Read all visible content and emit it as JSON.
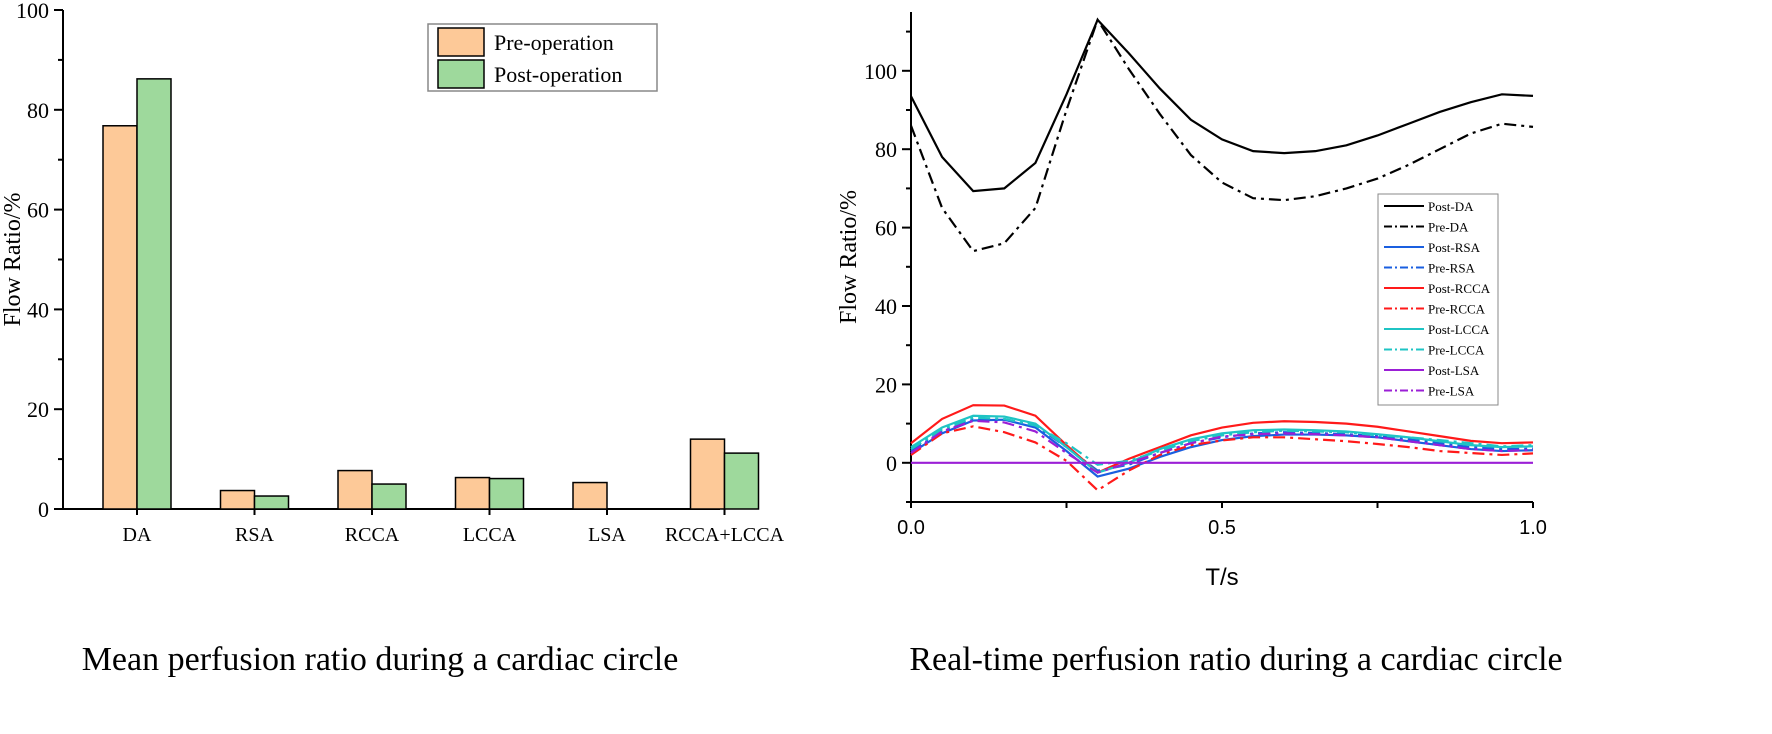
{
  "chart_data": [
    {
      "type": "bar",
      "title": "Mean perfusion ratio during a cardiac circle",
      "xlabel": "",
      "ylabel": "Flow Ratio/%",
      "ylim": [
        0,
        100
      ],
      "yticks": [
        "0",
        "20",
        "40",
        "60",
        "80",
        "100"
      ],
      "categories": [
        "DA",
        "RSA",
        "RCCA",
        "LCCA",
        "LSA",
        "RCCA+LCCA"
      ],
      "legend_position": "top-right",
      "series": [
        {
          "name": "Pre-operation",
          "color": "#fdc998",
          "values": [
            76.8,
            3.7,
            7.7,
            6.3,
            5.3,
            14.0
          ]
        },
        {
          "name": "Post-operation",
          "color": "#9ed99c",
          "values": [
            86.2,
            2.6,
            5.0,
            6.1,
            0.0,
            11.2
          ]
        }
      ]
    },
    {
      "type": "line",
      "title": "Real-time perfusion ratio during a cardiac circle",
      "xlabel": "T/s",
      "ylabel": "Flow Ratio/%",
      "xlim": [
        0,
        1
      ],
      "ylim": [
        -10,
        115
      ],
      "xticks": [
        "0.0",
        "0.5",
        "1.0"
      ],
      "yticks": [
        "0",
        "20",
        "40",
        "60",
        "80",
        "100"
      ],
      "legend_position": "right",
      "x": [
        0,
        0.05,
        0.1,
        0.15,
        0.2,
        0.25,
        0.3,
        0.35,
        0.4,
        0.45,
        0.5,
        0.55,
        0.6,
        0.65,
        0.7,
        0.75,
        0.8,
        0.85,
        0.9,
        0.95,
        1.0
      ],
      "series": [
        {
          "name": "Post-DA",
          "color": "#000000",
          "dash": "solid",
          "values": [
            93.5,
            78,
            69.3,
            70,
            76.5,
            94,
            113,
            104.5,
            95.5,
            87.5,
            82.5,
            79.5,
            79,
            79.5,
            81,
            83.5,
            86.5,
            89.5,
            92,
            94,
            93.6
          ]
        },
        {
          "name": "Pre-DA",
          "color": "#000000",
          "dash": "dashdot",
          "values": [
            86,
            65,
            54,
            56,
            65,
            90,
            113,
            100.5,
            89,
            78.5,
            71.5,
            67.5,
            67,
            68,
            70,
            72.5,
            76,
            80,
            84,
            86.5,
            85.7
          ]
        },
        {
          "name": "Post-RSA",
          "color": "#1a5fe0",
          "dash": "solid",
          "values": [
            2.5,
            7.5,
            10.8,
            11,
            9,
            3,
            -3.5,
            -1.5,
            1.5,
            4,
            5.8,
            6.8,
            7.2,
            7.2,
            7,
            6.5,
            5.5,
            4.5,
            3.5,
            3,
            3.2
          ]
        },
        {
          "name": "Pre-RSA",
          "color": "#1a5fe0",
          "dash": "dashdot",
          "values": [
            3,
            8,
            11,
            11,
            9.5,
            4,
            -2,
            -0.5,
            2.5,
            5,
            6.5,
            7.5,
            7.8,
            7.6,
            7.3,
            6.8,
            6,
            5,
            4,
            3.5,
            3.6
          ]
        },
        {
          "name": "Post-RCCA",
          "color": "#ff1a1a",
          "dash": "solid",
          "values": [
            5,
            11.2,
            14.7,
            14.6,
            12,
            4.5,
            -2.5,
            1,
            4,
            7,
            9,
            10.2,
            10.6,
            10.4,
            10,
            9.2,
            8,
            6.8,
            5.6,
            5,
            5.2
          ]
        },
        {
          "name": "Pre-RCCA",
          "color": "#ff1a1a",
          "dash": "dashdot",
          "values": [
            2,
            7.5,
            9.3,
            7.8,
            5.2,
            0.5,
            -7,
            -2,
            2,
            4.5,
            5.7,
            6.5,
            6.5,
            6,
            5.5,
            4.8,
            4,
            3,
            2.5,
            2,
            2.4
          ]
        },
        {
          "name": "Post-LCCA",
          "color": "#1fc4c4",
          "dash": "solid",
          "values": [
            4,
            9,
            12,
            11.8,
            10,
            4,
            -2.5,
            0,
            3.5,
            6,
            7.5,
            8.3,
            8.5,
            8.3,
            8,
            7.3,
            6.5,
            5.5,
            4.5,
            4,
            4.2
          ]
        },
        {
          "name": "Pre-LCCA",
          "color": "#1fc4c4",
          "dash": "dashdot",
          "values": [
            3.5,
            8.5,
            11.5,
            11.2,
            9.5,
            5,
            -0.5,
            0.5,
            3,
            5.5,
            7,
            7.8,
            8.2,
            8,
            7.8,
            7,
            6.5,
            5.8,
            5,
            4.2,
            4.5
          ]
        },
        {
          "name": "Post-LSA",
          "color": "#9b1fd6",
          "dash": "solid",
          "values": [
            0,
            0,
            0,
            0,
            0,
            0,
            0,
            0,
            0,
            0,
            0,
            0,
            0,
            0,
            0,
            0,
            0,
            0,
            0,
            0,
            0
          ]
        },
        {
          "name": "Pre-LSA",
          "color": "#9b1fd6",
          "dash": "dashdot",
          "values": [
            2.5,
            8,
            10.7,
            10.3,
            8,
            2.5,
            -2.5,
            0,
            2.5,
            5,
            6.7,
            7.3,
            7.5,
            7.3,
            7,
            6.5,
            5.5,
            4.5,
            3.5,
            3,
            3.3
          ]
        }
      ]
    }
  ]
}
